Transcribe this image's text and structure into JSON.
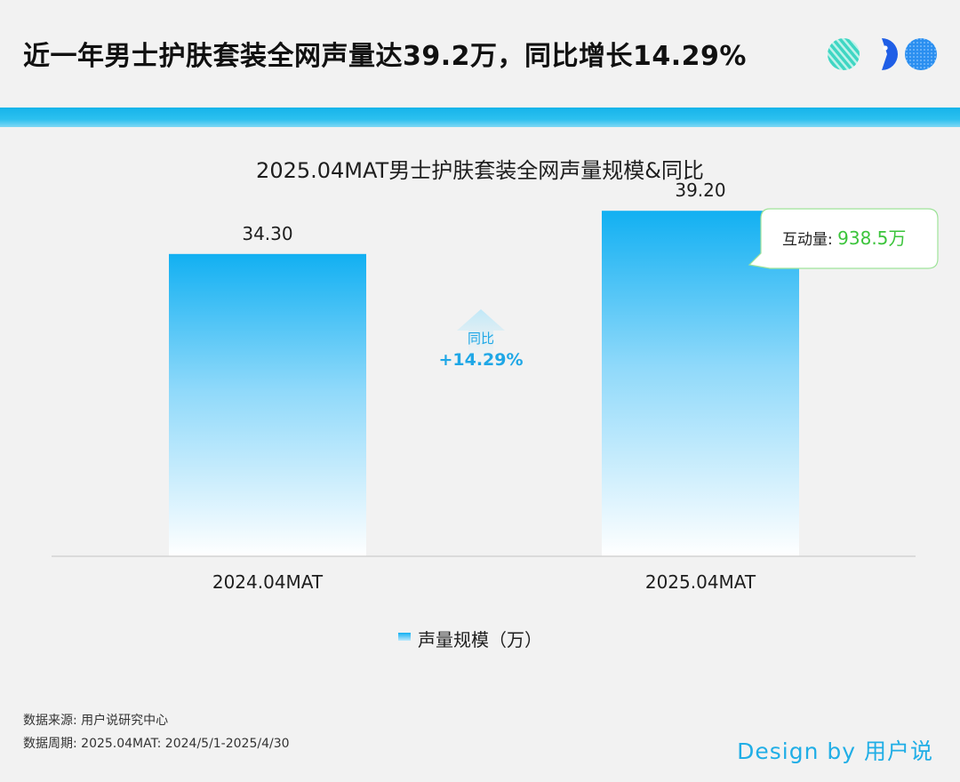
{
  "header": {
    "title": "近一年男士护肤套装全网声量达39.2万，同比增长14.29%"
  },
  "colors": {
    "accent": "#1ab4ea",
    "bar_top": "#12b0f2",
    "callout_green": "#3cc43c",
    "growth_text": "#1fa7e6"
  },
  "chart_data": {
    "type": "bar",
    "title": "2025.04MAT男士护肤套装全网声量规模&同比",
    "categories": [
      "2024.04MAT",
      "2025.04MAT"
    ],
    "series": [
      {
        "name": "声量规模（万）",
        "values": [
          34.3,
          39.2
        ],
        "labels": [
          "34.30",
          "39.20"
        ]
      }
    ],
    "ylim": [
      0,
      49
    ],
    "grid": false,
    "legend": "bottom-center",
    "growth": {
      "label": "同比",
      "value": "+14.29%"
    },
    "callout": {
      "label": "互动量: ",
      "value": "938.5万"
    }
  },
  "footer": {
    "source": "数据来源: 用户说研究中心",
    "period": "数据周期: 2025.04MAT: 2024/5/1-2025/4/30",
    "signature": "Design by 用户说"
  }
}
